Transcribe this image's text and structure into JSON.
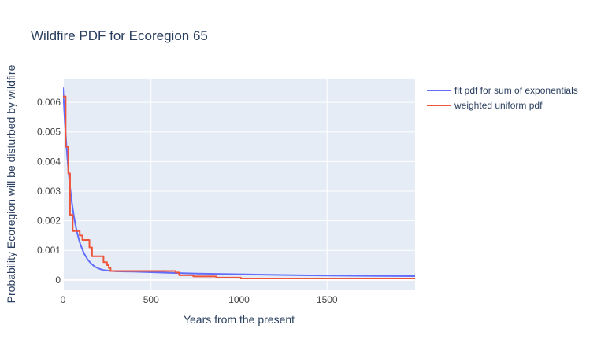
{
  "chart_data": {
    "type": "line",
    "title": "Wildfire PDF for Ecoregion 65",
    "xlabel": "Years from the present",
    "ylabel": "Probability Ecoregion will be disturbed by wildfire",
    "xlim": [
      0,
      2000
    ],
    "ylim": [
      -0.00035,
      0.0068
    ],
    "xticks": [
      0,
      500,
      1000,
      1500
    ],
    "xtick_labels": [
      "0",
      "500",
      "1000",
      "1500"
    ],
    "yticks": [
      0,
      0.001,
      0.002,
      0.003,
      0.004,
      0.005,
      0.006
    ],
    "ytick_labels": [
      "0",
      "0.001",
      "0.002",
      "0.003",
      "0.004",
      "0.005",
      "0.006"
    ],
    "grid": true,
    "legend_position": "top-right outside",
    "series": [
      {
        "name": "fit pdf for sum of exponentials",
        "color": "#636efa",
        "line": "smooth",
        "x": [
          0,
          10,
          20,
          30,
          40,
          50,
          60,
          70,
          80,
          90,
          100,
          120,
          140,
          160,
          180,
          200,
          230,
          260,
          300,
          350,
          400,
          500,
          600,
          700,
          800,
          1000,
          1200,
          1400,
          1600,
          1800,
          2000
        ],
        "y": [
          0.0065,
          0.0054,
          0.0045,
          0.00375,
          0.00314,
          0.00263,
          0.00222,
          0.00188,
          0.0016,
          0.00137,
          0.00118,
          0.00089,
          0.00069,
          0.00055,
          0.00045,
          0.00039,
          0.00033,
          0.00031,
          0.00029,
          0.000285,
          0.00028,
          0.00026,
          0.00024,
          0.000225,
          0.00021,
          0.00019,
          0.00017,
          0.000155,
          0.000145,
          0.000135,
          0.00013
        ]
      },
      {
        "name": "weighted uniform pdf",
        "color": "#ef553b",
        "line": "step",
        "x": [
          0,
          15,
          22,
          30,
          40,
          55,
          95,
          110,
          150,
          165,
          230,
          250,
          260,
          270,
          640,
          660,
          740,
          870,
          1010,
          2000
        ],
        "y": [
          0.0062,
          0.0045,
          0.0045,
          0.0036,
          0.0022,
          0.00165,
          0.0015,
          0.00135,
          0.0011,
          0.0008,
          0.0006,
          0.0005,
          0.0004,
          0.0003,
          0.00025,
          0.00016,
          0.00012,
          8e-05,
          5e-05,
          5e-05
        ]
      }
    ]
  }
}
